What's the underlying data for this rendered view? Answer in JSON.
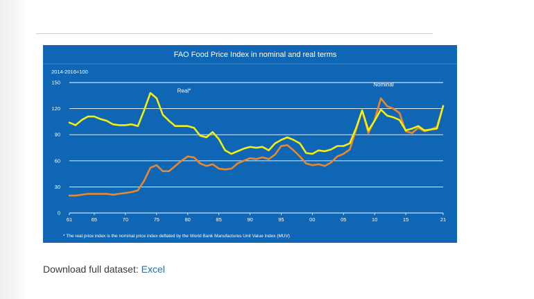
{
  "chart_data": {
    "type": "line",
    "title": "FAO Food Price Index in nominal and real terms",
    "unit_label": "2014-2016=100",
    "ylim": [
      0,
      150
    ],
    "yticks": [
      0,
      30,
      60,
      90,
      120,
      150
    ],
    "xlim": [
      1961,
      2021
    ],
    "xticks": [
      {
        "x": 1961,
        "label": "61"
      },
      {
        "x": 1965,
        "label": "65"
      },
      {
        "x": 1970,
        "label": "70"
      },
      {
        "x": 1975,
        "label": "75"
      },
      {
        "x": 1980,
        "label": "80"
      },
      {
        "x": 1985,
        "label": "85"
      },
      {
        "x": 1990,
        "label": "90"
      },
      {
        "x": 1995,
        "label": "95"
      },
      {
        "x": 2000,
        "label": "00"
      },
      {
        "x": 2005,
        "label": "05"
      },
      {
        "x": 2010,
        "label": "10"
      },
      {
        "x": 2015,
        "label": "15"
      },
      {
        "x": 2021,
        "label": "21"
      }
    ],
    "grid": true,
    "footnote": "* The real price index is the nominal price index deflated by the World Bank Manufactures Unit Value Index (MUV)",
    "series": [
      {
        "name": "Real*",
        "color": "#f2f20a",
        "x": [
          1961,
          1962,
          1963,
          1964,
          1965,
          1966,
          1967,
          1968,
          1969,
          1970,
          1971,
          1972,
          1973,
          1974,
          1975,
          1976,
          1977,
          1978,
          1979,
          1980,
          1981,
          1982,
          1983,
          1984,
          1985,
          1986,
          1987,
          1988,
          1989,
          1990,
          1991,
          1992,
          1993,
          1994,
          1995,
          1996,
          1997,
          1998,
          1999,
          2000,
          2001,
          2002,
          2003,
          2004,
          2005,
          2006,
          2007,
          2008,
          2009,
          2010,
          2011,
          2012,
          2013,
          2014,
          2015,
          2016,
          2017,
          2018,
          2019,
          2020,
          2021
        ],
        "values": [
          104,
          101,
          107,
          111,
          111,
          108,
          106,
          102,
          101,
          101,
          102,
          100,
          118,
          138,
          132,
          113,
          106,
          100,
          100,
          100,
          98,
          89,
          87,
          93,
          85,
          72,
          68,
          71,
          74,
          76,
          75,
          76,
          72,
          80,
          84,
          87,
          84,
          80,
          69,
          68,
          72,
          71,
          73,
          77,
          77,
          80,
          97,
          118,
          95,
          106,
          119,
          112,
          110,
          107,
          95,
          97,
          100,
          95,
          96,
          97,
          123
        ]
      },
      {
        "name": "Nominal",
        "color": "#e8892e",
        "x": [
          1961,
          1962,
          1963,
          1964,
          1965,
          1966,
          1967,
          1968,
          1969,
          1970,
          1971,
          1972,
          1973,
          1974,
          1975,
          1976,
          1977,
          1978,
          1979,
          1980,
          1981,
          1982,
          1983,
          1984,
          1985,
          1986,
          1987,
          1988,
          1989,
          1990,
          1991,
          1992,
          1993,
          1994,
          1995,
          1996,
          1997,
          1998,
          1999,
          2000,
          2001,
          2002,
          2003,
          2004,
          2005,
          2006,
          2007,
          2008,
          2009,
          2010,
          2011,
          2012,
          2013,
          2014,
          2015,
          2016,
          2017,
          2018,
          2019,
          2020,
          2021
        ],
        "values": [
          20,
          20,
          21,
          22,
          22,
          22,
          22,
          21,
          22,
          23,
          24,
          26,
          37,
          52,
          55,
          48,
          48,
          54,
          60,
          65,
          64,
          57,
          54,
          56,
          51,
          50,
          51,
          57,
          60,
          63,
          62,
          64,
          62,
          67,
          77,
          78,
          72,
          65,
          57,
          55,
          56,
          54,
          58,
          65,
          68,
          73,
          95,
          118,
          92,
          107,
          132,
          123,
          120,
          115,
          94,
          92,
          98,
          94,
          96,
          99,
          123
        ]
      }
    ],
    "annotations": [
      {
        "text": "Real*",
        "series": "Real*"
      },
      {
        "text": "Nominal",
        "series": "Nominal"
      }
    ]
  },
  "download": {
    "label": "Download full dataset:",
    "link_text": "Excel"
  }
}
